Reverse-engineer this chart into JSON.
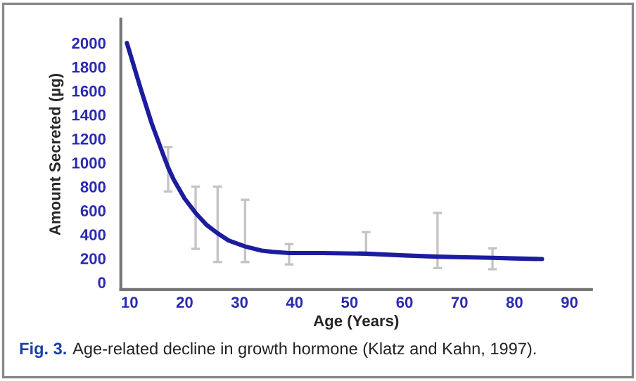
{
  "chart_data": {
    "type": "line",
    "xlabel": "Age (Years)",
    "ylabel": "Amount Secreted (µg)",
    "annotations": [
      "Fig. 3.",
      "Age-related decline in growth hormone (Klatz and Kahn, 1997)."
    ],
    "xlim": [
      8.4,
      94
    ],
    "ylim": [
      -60,
      2200
    ],
    "xticks": [
      10,
      20,
      30,
      40,
      50,
      60,
      70,
      80,
      90
    ],
    "yticks": [
      0,
      200,
      400,
      600,
      800,
      1000,
      1200,
      1400,
      1600,
      1800,
      2000
    ],
    "grid": false,
    "marker": "none",
    "line_style": "solid",
    "series": [
      {
        "color": "#1c1c9e",
        "x": [
          9.5,
          12,
          14,
          16,
          17,
          18,
          20,
          22,
          24,
          26,
          28,
          31,
          34,
          36,
          39,
          45,
          53,
          60,
          66,
          71,
          76,
          80,
          85
        ],
        "values": [
          2000,
          1620,
          1330,
          1080,
          960,
          860,
          700,
          580,
          480,
          410,
          350,
          300,
          265,
          255,
          245,
          245,
          240,
          225,
          215,
          210,
          205,
          200,
          195
        ],
        "errors": [
          null,
          null,
          null,
          null,
          [
            760,
            1130
          ],
          null,
          null,
          [
            280,
            800
          ],
          null,
          [
            170,
            800
          ],
          null,
          [
            170,
            690
          ],
          null,
          null,
          [
            150,
            320
          ],
          null,
          [
            230,
            420
          ],
          null,
          [
            120,
            580
          ],
          null,
          [
            110,
            285
          ],
          null,
          null
        ]
      }
    ]
  }
}
